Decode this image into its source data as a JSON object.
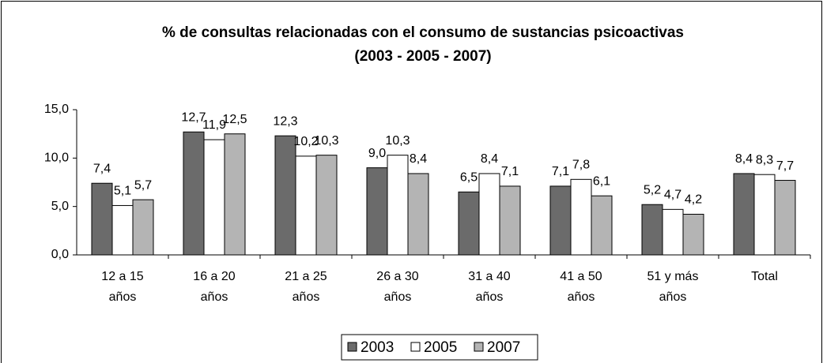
{
  "chart_data": {
    "type": "bar",
    "title": [
      "% de consultas relacionadas con el consumo de sustancias psicoactivas",
      "(2003 - 2005 - 2007)"
    ],
    "categories": [
      [
        "12 a 15",
        "años"
      ],
      [
        "16 a 20",
        "años"
      ],
      [
        "21 a 25",
        "años"
      ],
      [
        "26 a 30",
        "años"
      ],
      [
        "31  a 40",
        "años"
      ],
      [
        "41 a 50",
        "años"
      ],
      [
        "51 y más",
        "años"
      ],
      [
        "Total"
      ]
    ],
    "series": [
      {
        "name": "2003",
        "color": "#6b6b6b",
        "values": [
          7.4,
          12.7,
          12.3,
          9.0,
          6.5,
          7.1,
          5.2,
          8.4
        ],
        "value_labels": [
          "7,4",
          "12,7",
          "12,3",
          "9,0",
          "6,5",
          "7,1",
          "5,2",
          "8,4"
        ]
      },
      {
        "name": "2005",
        "color": "#ffffff",
        "values": [
          5.1,
          11.9,
          10.2,
          10.3,
          8.4,
          7.8,
          4.7,
          8.3
        ],
        "value_labels": [
          "5,1",
          "11,9",
          "10,2",
          "10,3",
          "8,4",
          "7,8",
          "4,7",
          "8,3"
        ]
      },
      {
        "name": "2007",
        "color": "#b4b4b4",
        "values": [
          5.7,
          12.5,
          10.3,
          8.4,
          7.1,
          6.1,
          4.2,
          7.7
        ],
        "value_labels": [
          "5,7",
          "12,5",
          "10,3",
          "8,4",
          "7,1",
          "6,1",
          "4,2",
          "7,7"
        ]
      }
    ],
    "ylim": [
      0,
      15
    ],
    "yticks": [
      {
        "value": 0,
        "label": "0,0"
      },
      {
        "value": 5,
        "label": "5,0"
      },
      {
        "value": 10,
        "label": "10,0"
      },
      {
        "value": 15,
        "label": "15,0"
      }
    ],
    "legend": "bottom"
  }
}
